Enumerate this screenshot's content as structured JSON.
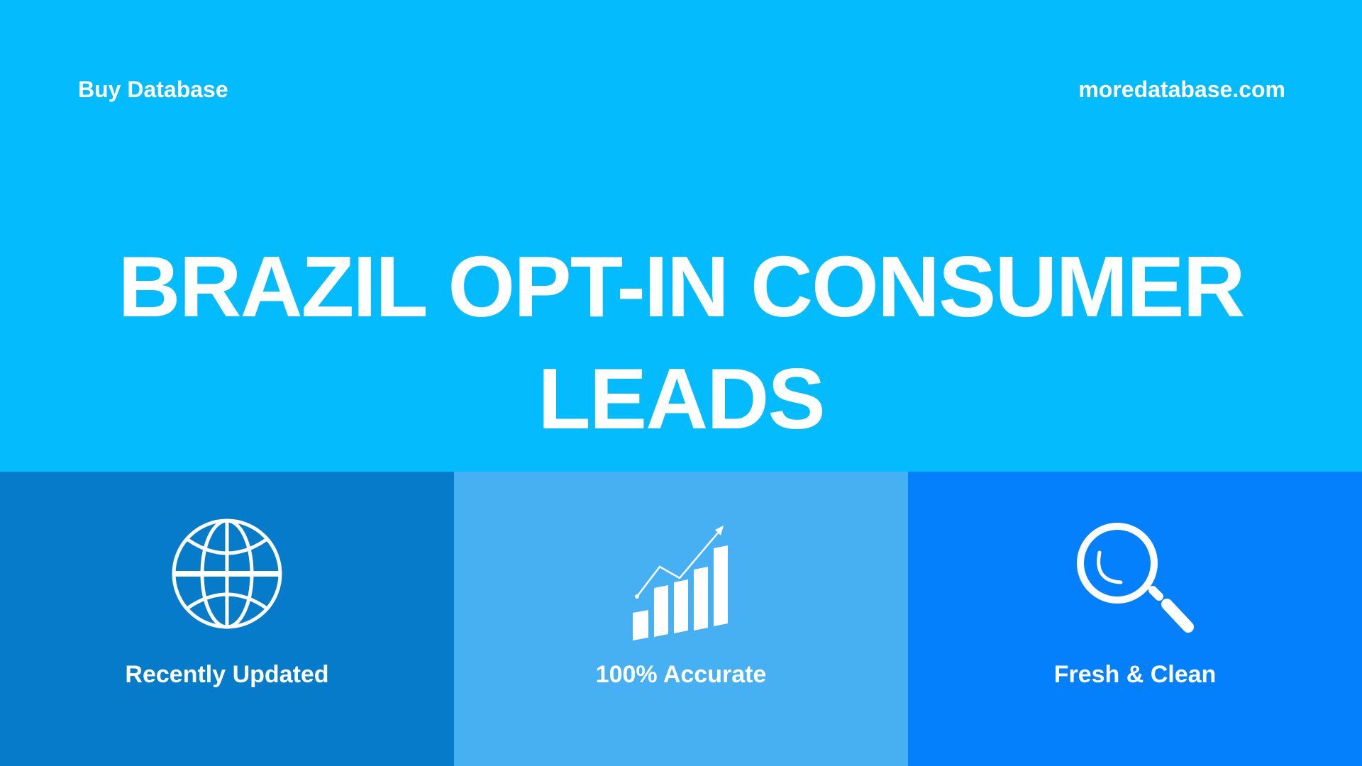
{
  "header": {
    "brand": "Buy Database",
    "site": "moredatabase.com"
  },
  "title": {
    "line1": "BRAZIL OPT-IN CONSUMER",
    "line2": "LEADS"
  },
  "features": [
    {
      "label": "Recently Updated",
      "icon": "globe-icon",
      "color": "#067bc9"
    },
    {
      "label": "100% Accurate",
      "icon": "growth-chart-icon",
      "color": "#46b0f2"
    },
    {
      "label": "Fresh & Clean",
      "icon": "magnifier-icon",
      "color": "#0480fd"
    }
  ],
  "colors": {
    "background": "#03bbfd"
  }
}
